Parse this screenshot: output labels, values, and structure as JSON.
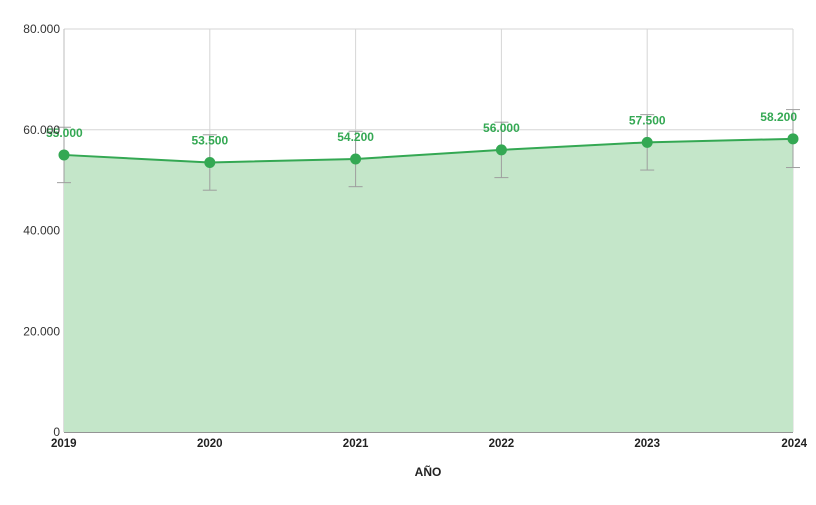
{
  "colors": {
    "series": "#34a853",
    "area_fill": "#c4e6c9",
    "grid": "#d6d6d6",
    "errorbar": "#9e9e9e"
  },
  "chart_data": {
    "type": "area",
    "x": [
      "2019",
      "2020",
      "2021",
      "2022",
      "2023",
      "2024"
    ],
    "series": [
      {
        "values": [
          55000,
          53500,
          54200,
          56000,
          57500,
          58200
        ],
        "data_labels": [
          "55.000",
          "53.500",
          "54.200",
          "56.000",
          "57.500",
          "58.200"
        ]
      }
    ],
    "error_bars": {
      "upper": [
        60500,
        59000,
        59700,
        61500,
        63000,
        64000
      ],
      "lower": [
        49500,
        48000,
        48700,
        50500,
        52000,
        52500
      ]
    },
    "y_ticks": [
      {
        "value": 0,
        "label": "0"
      },
      {
        "value": 20000,
        "label": "20.000"
      },
      {
        "value": 40000,
        "label": "40.000"
      },
      {
        "value": 60000,
        "label": "60.000"
      },
      {
        "value": 80000,
        "label": "80.000"
      }
    ],
    "ylim": [
      0,
      80000
    ],
    "xlabel": "AÑO",
    "ylabel": "",
    "title": "",
    "grid": true,
    "markers": true
  }
}
